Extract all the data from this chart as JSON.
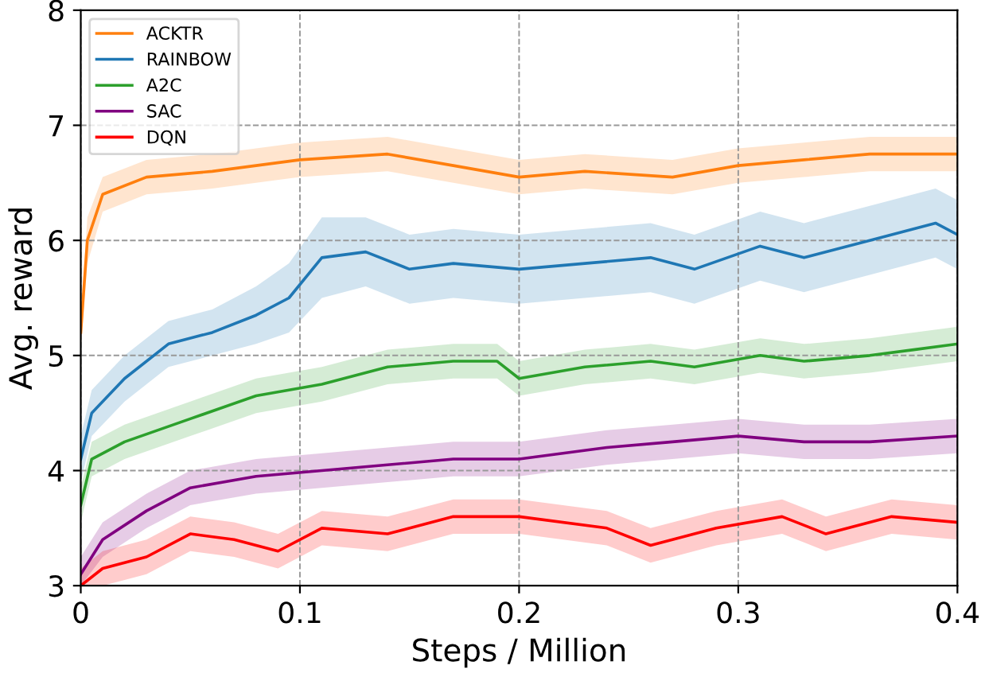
{
  "chart_data": {
    "type": "line",
    "xlabel": "Steps / Million",
    "ylabel": "Avg. reward",
    "xlim": [
      0,
      0.4
    ],
    "ylim": [
      3,
      8
    ],
    "xticks": [
      0,
      0.1,
      0.2,
      0.3,
      0.4
    ],
    "yticks": [
      3,
      4,
      5,
      6,
      7,
      8
    ],
    "grid": true,
    "legend": "top left",
    "line_style": "solid",
    "marker": "none",
    "series": [
      {
        "name": "ACKTR",
        "color": "#ff7f0e",
        "x": [
          0,
          0.003,
          0.01,
          0.03,
          0.06,
          0.1,
          0.14,
          0.17,
          0.2,
          0.23,
          0.27,
          0.3,
          0.33,
          0.36,
          0.4
        ],
        "values": [
          5.2,
          6.0,
          6.4,
          6.55,
          6.6,
          6.7,
          6.75,
          6.65,
          6.55,
          6.6,
          6.55,
          6.65,
          6.7,
          6.75,
          6.75
        ],
        "lower": [
          5.05,
          5.8,
          6.25,
          6.4,
          6.45,
          6.55,
          6.6,
          6.5,
          6.4,
          6.45,
          6.4,
          6.5,
          6.55,
          6.6,
          6.6
        ],
        "upper": [
          5.35,
          6.2,
          6.55,
          6.7,
          6.75,
          6.85,
          6.9,
          6.8,
          6.7,
          6.75,
          6.7,
          6.8,
          6.85,
          6.9,
          6.9
        ]
      },
      {
        "name": "RAINBOW",
        "color": "#1f77b4",
        "x": [
          0,
          0.005,
          0.02,
          0.04,
          0.06,
          0.08,
          0.095,
          0.11,
          0.13,
          0.15,
          0.17,
          0.2,
          0.23,
          0.26,
          0.28,
          0.31,
          0.33,
          0.36,
          0.39,
          0.4
        ],
        "values": [
          4.1,
          4.5,
          4.8,
          5.1,
          5.2,
          5.35,
          5.5,
          5.85,
          5.9,
          5.75,
          5.8,
          5.75,
          5.8,
          5.85,
          5.75,
          5.95,
          5.85,
          6.0,
          6.15,
          6.05
        ],
        "lower": [
          3.9,
          4.3,
          4.6,
          4.9,
          5.0,
          5.1,
          5.2,
          5.5,
          5.6,
          5.45,
          5.5,
          5.45,
          5.5,
          5.55,
          5.45,
          5.65,
          5.55,
          5.7,
          5.85,
          5.75
        ],
        "upper": [
          4.3,
          4.7,
          5.0,
          5.3,
          5.4,
          5.6,
          5.8,
          6.2,
          6.2,
          6.05,
          6.1,
          6.05,
          6.1,
          6.15,
          6.05,
          6.25,
          6.15,
          6.3,
          6.45,
          6.35
        ]
      },
      {
        "name": "A2C",
        "color": "#2ca02c",
        "x": [
          0,
          0.005,
          0.02,
          0.05,
          0.08,
          0.11,
          0.14,
          0.17,
          0.19,
          0.2,
          0.23,
          0.26,
          0.28,
          0.31,
          0.33,
          0.36,
          0.38,
          0.4
        ],
        "values": [
          3.7,
          4.1,
          4.25,
          4.45,
          4.65,
          4.75,
          4.9,
          4.95,
          4.95,
          4.8,
          4.9,
          4.95,
          4.9,
          5.0,
          4.95,
          5.0,
          5.05,
          5.1
        ],
        "lower": [
          3.55,
          3.95,
          4.1,
          4.3,
          4.5,
          4.6,
          4.75,
          4.8,
          4.8,
          4.65,
          4.75,
          4.8,
          4.75,
          4.85,
          4.8,
          4.85,
          4.9,
          4.95
        ],
        "upper": [
          3.85,
          4.25,
          4.4,
          4.6,
          4.8,
          4.9,
          5.05,
          5.1,
          5.1,
          4.95,
          5.05,
          5.1,
          5.05,
          5.15,
          5.1,
          5.15,
          5.2,
          5.25
        ]
      },
      {
        "name": "SAC",
        "color": "#800080",
        "x": [
          0,
          0.01,
          0.03,
          0.05,
          0.08,
          0.11,
          0.14,
          0.17,
          0.2,
          0.24,
          0.27,
          0.3,
          0.33,
          0.36,
          0.4
        ],
        "values": [
          3.1,
          3.4,
          3.65,
          3.85,
          3.95,
          4.0,
          4.05,
          4.1,
          4.1,
          4.2,
          4.25,
          4.3,
          4.25,
          4.25,
          4.3
        ],
        "lower": [
          3.0,
          3.25,
          3.5,
          3.7,
          3.8,
          3.85,
          3.9,
          3.95,
          3.95,
          4.05,
          4.1,
          4.15,
          4.1,
          4.1,
          4.15
        ],
        "upper": [
          3.25,
          3.55,
          3.8,
          4.0,
          4.1,
          4.15,
          4.2,
          4.25,
          4.25,
          4.35,
          4.4,
          4.45,
          4.4,
          4.4,
          4.45
        ]
      },
      {
        "name": "DQN",
        "color": "#ff0000",
        "x": [
          0,
          0.01,
          0.03,
          0.05,
          0.07,
          0.09,
          0.11,
          0.14,
          0.17,
          0.2,
          0.24,
          0.26,
          0.29,
          0.32,
          0.34,
          0.37,
          0.4
        ],
        "values": [
          3.0,
          3.15,
          3.25,
          3.45,
          3.4,
          3.3,
          3.5,
          3.45,
          3.6,
          3.6,
          3.5,
          3.35,
          3.5,
          3.6,
          3.45,
          3.6,
          3.55
        ],
        "lower": [
          3.0,
          3.0,
          3.1,
          3.3,
          3.25,
          3.15,
          3.35,
          3.3,
          3.45,
          3.45,
          3.35,
          3.2,
          3.35,
          3.45,
          3.3,
          3.45,
          3.4
        ],
        "upper": [
          3.15,
          3.3,
          3.4,
          3.6,
          3.55,
          3.45,
          3.65,
          3.6,
          3.75,
          3.75,
          3.65,
          3.5,
          3.65,
          3.75,
          3.6,
          3.75,
          3.7
        ]
      }
    ]
  }
}
